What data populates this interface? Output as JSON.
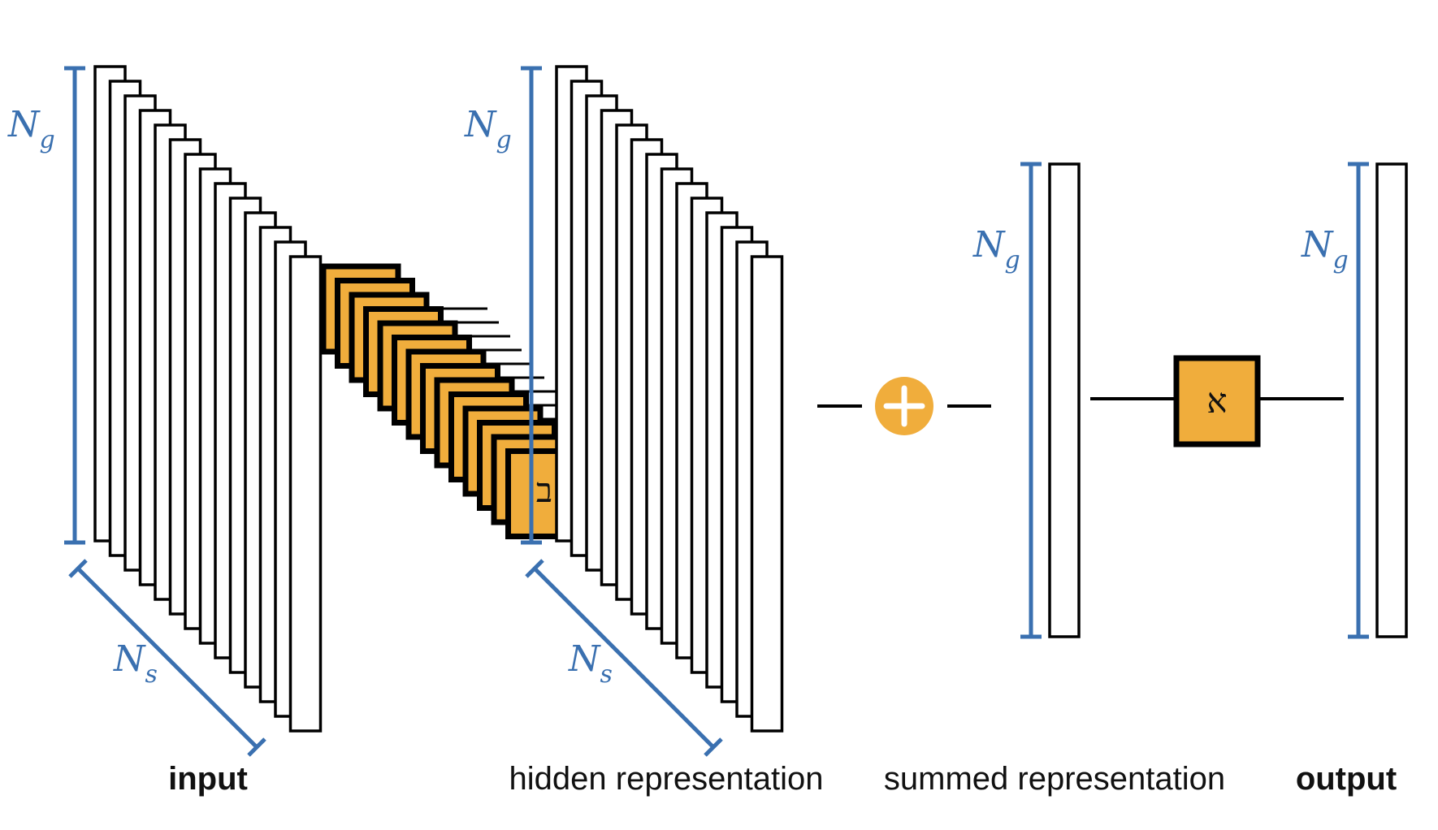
{
  "labels": {
    "ng": "N",
    "ng_sub": "g",
    "ns": "N",
    "ns_sub": "s"
  },
  "captions": {
    "input": "input",
    "hidden": "hidden representation",
    "summed": "summed representation",
    "output": "output"
  },
  "symbols": {
    "encoder": "ב",
    "decoder": "א",
    "plus": "plus-icon"
  },
  "colors": {
    "accent_orange": "#f0ad3c",
    "dimension_blue": "#3a70b0",
    "stroke": "#000000"
  }
}
